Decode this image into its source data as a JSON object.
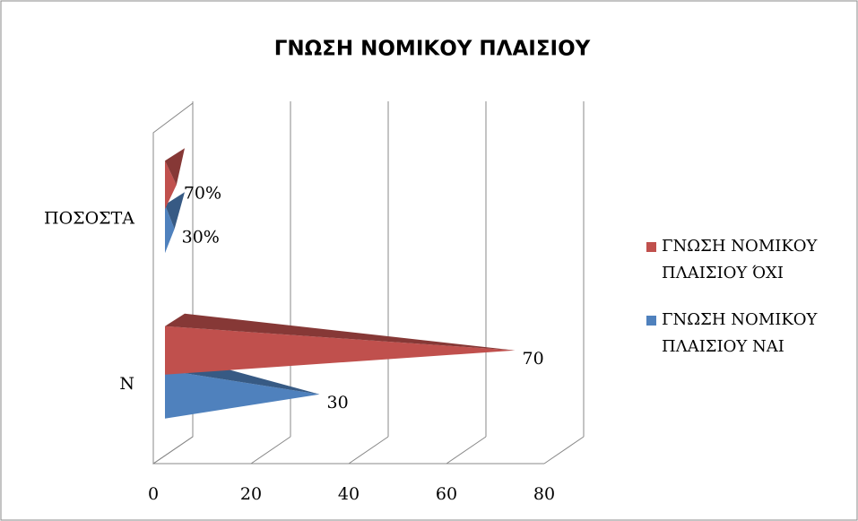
{
  "chart_data": {
    "type": "bar3d",
    "orientation": "horizontal",
    "title": "ΓΝΩΣΗ ΝΟΜΙΚΟΥ ΠΛΑΙΣΙΟΥ",
    "categories": [
      "N",
      "ΠΟΣΟΣΤΑ"
    ],
    "series": [
      {
        "name": "ΓΝΩΣΗ ΝΟΜΙΚΟΥ ΠΛΑΙΣΙΟΥ ΝΑΙ",
        "color": "#4f81bd",
        "values": [
          30,
          0.3
        ],
        "value_labels": [
          null,
          "30%"
        ]
      },
      {
        "name": "ΓΝΩΣΗ ΝΟΜΙΚΟΥ ΠΛΑΙΣΙΟΥ ΌΧΙ",
        "color": "#c0504d",
        "values": [
          70,
          0.7
        ],
        "value_labels": [
          null,
          "70%"
        ]
      }
    ],
    "xlim": [
      0,
      80
    ],
    "xticks": [
      0,
      20,
      40,
      60,
      80
    ],
    "grid": true,
    "legend": "right"
  }
}
